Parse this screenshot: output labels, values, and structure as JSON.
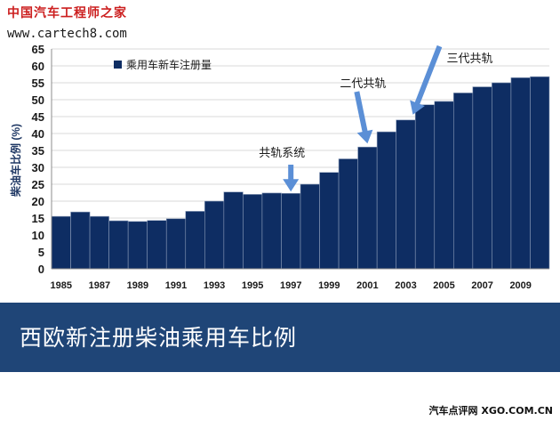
{
  "watermark": {
    "site_name": "中国汽车工程师之家",
    "url": "www.cartech8.com"
  },
  "colors": {
    "bar": "#0e2d63",
    "bar_border": "#8a9bb8",
    "arrow": "#5b8fd6",
    "caption_bg": "#1f4577"
  },
  "chart_data": {
    "type": "bar",
    "ylabel": "柴油车比例 (%)",
    "ylim": [
      0,
      65
    ],
    "yticks": [
      0,
      5,
      10,
      15,
      20,
      25,
      30,
      35,
      40,
      45,
      50,
      55,
      60,
      65
    ],
    "grid": true,
    "legend_position": "top-left",
    "categories": [
      1985,
      1986,
      1987,
      1988,
      1989,
      1990,
      1991,
      1992,
      1993,
      1994,
      1995,
      1996,
      1997,
      1998,
      1999,
      2000,
      2001,
      2002,
      2003,
      2004,
      2005,
      2006,
      2007,
      2008,
      2009,
      2010
    ],
    "tick_labels": [
      "1985",
      "1987",
      "1989",
      "1991",
      "1993",
      "1995",
      "1997",
      "1999",
      "2001",
      "2003",
      "2005",
      "2007",
      "2009"
    ],
    "series": [
      {
        "name": "乘用车新车注册量",
        "values": [
          15.5,
          16.8,
          15.5,
          14.2,
          14.0,
          14.3,
          14.8,
          17.0,
          20.0,
          22.7,
          22.0,
          22.4,
          22.3,
          25.0,
          28.5,
          32.5,
          36.0,
          40.5,
          44.0,
          48.5,
          49.5,
          52.0,
          53.8,
          55.0,
          56.5,
          56.8
        ]
      }
    ],
    "annotations": [
      {
        "text": "共轨系统",
        "year": 1997
      },
      {
        "text": "二代共轨",
        "year": 2001
      },
      {
        "text": "三代共轨",
        "year": 2003
      }
    ]
  },
  "caption": "西欧新注册柴油乘用车比例",
  "footer": "汽车点评网 XGO.COM.CN"
}
